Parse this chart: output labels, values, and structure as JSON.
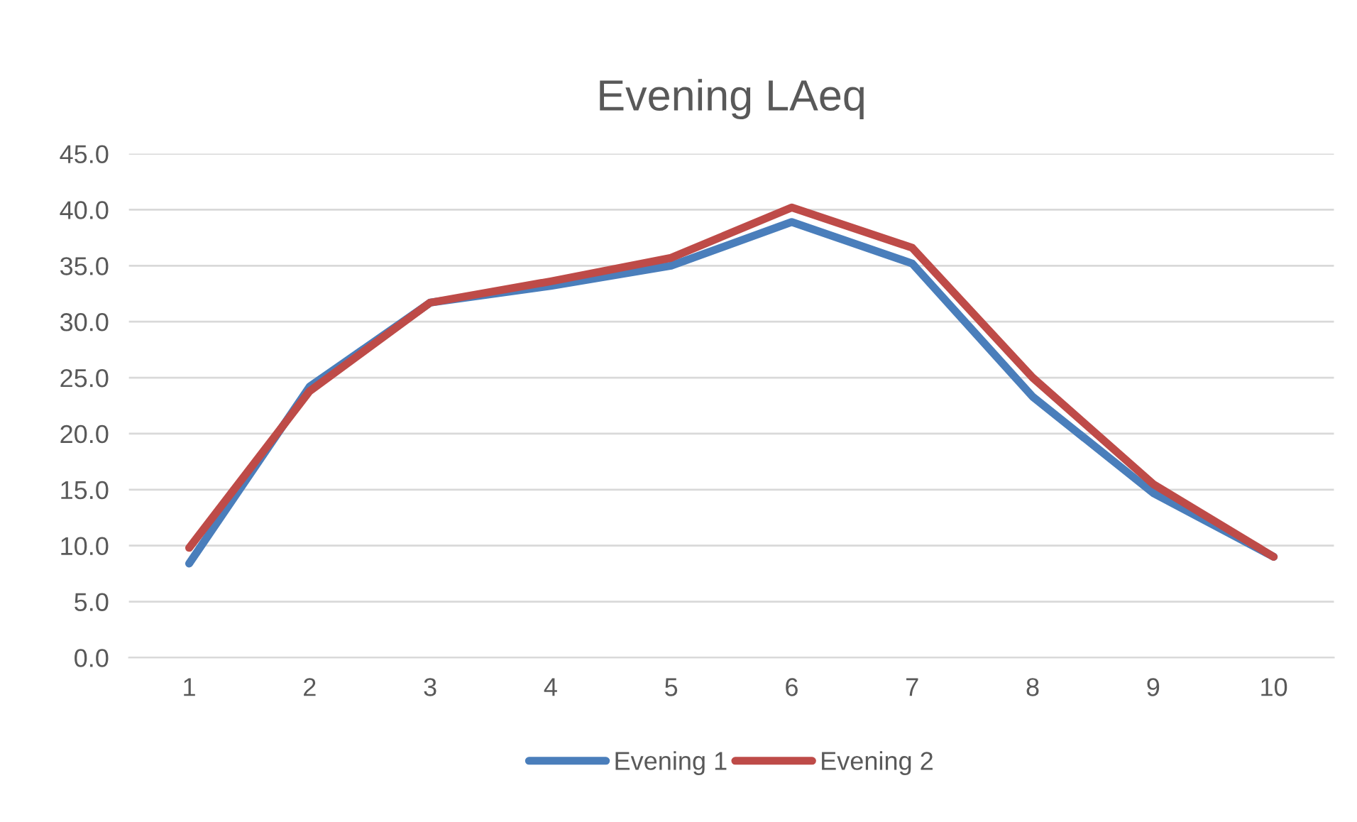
{
  "chart_data": {
    "type": "line",
    "title": "Evening LAeq",
    "categories": [
      "1",
      "2",
      "3",
      "4",
      "5",
      "6",
      "7",
      "8",
      "9",
      "10"
    ],
    "series": [
      {
        "name": "Evening 1",
        "color": "#4a7ebb",
        "values": [
          8.4,
          24.2,
          31.7,
          33.2,
          35.0,
          38.9,
          35.2,
          23.3,
          14.7,
          9.0
        ]
      },
      {
        "name": "Evening 2",
        "color": "#be4b48",
        "values": [
          9.8,
          23.8,
          31.7,
          33.6,
          35.7,
          40.2,
          36.6,
          25.0,
          15.5,
          9.0
        ]
      }
    ],
    "ylim": [
      0,
      45
    ],
    "yticks": [
      {
        "value": 0,
        "label": "0.0"
      },
      {
        "value": 5,
        "label": "5.0"
      },
      {
        "value": 10,
        "label": "10.0"
      },
      {
        "value": 15,
        "label": "15.0"
      },
      {
        "value": 20,
        "label": "20.0"
      },
      {
        "value": 25,
        "label": "25.0"
      },
      {
        "value": 30,
        "label": "30.0"
      },
      {
        "value": 35,
        "label": "35.0"
      },
      {
        "value": 40,
        "label": "40.0"
      },
      {
        "value": 45,
        "label": "45.0"
      }
    ],
    "grid": "y",
    "legend": "bottom",
    "marker": "none",
    "line_style": "solid"
  }
}
